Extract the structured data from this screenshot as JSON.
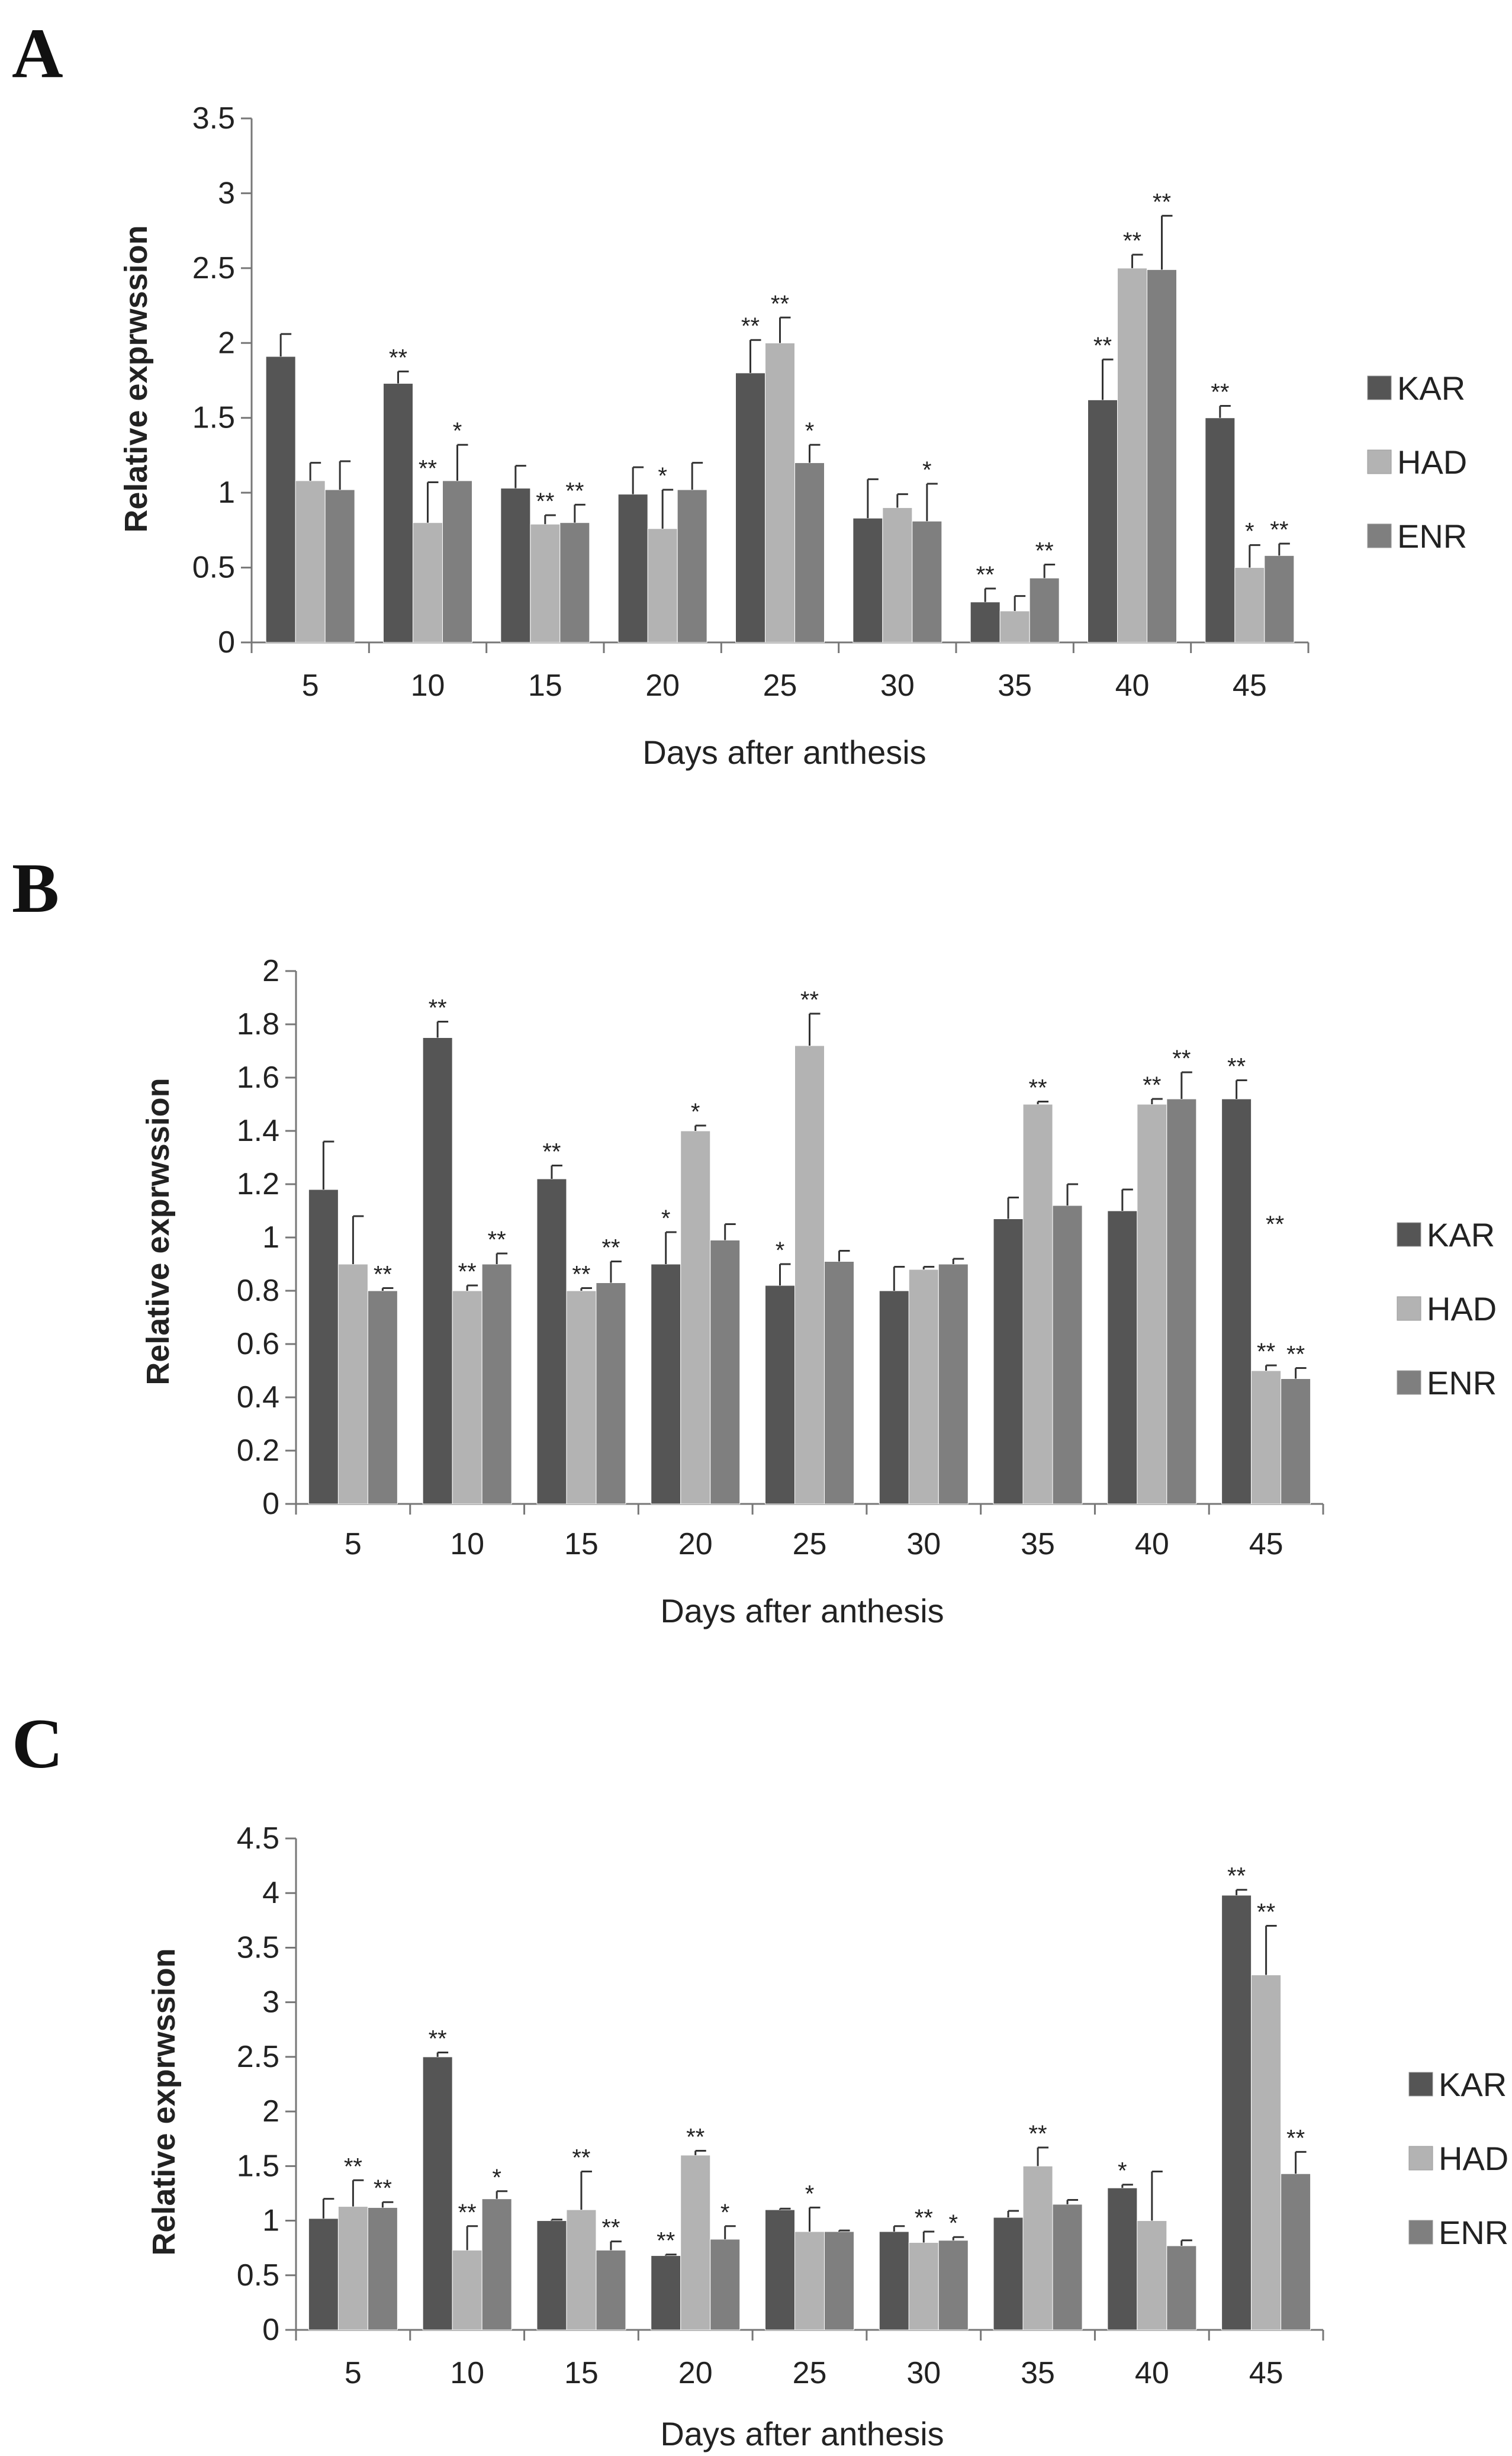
{
  "chart_data": [
    {
      "panel": "A",
      "type": "bar",
      "xlabel": "Days after anthesis",
      "ylabel": "Relative exprwssion",
      "ylim": [
        0,
        3.5
      ],
      "yticks": [
        "0",
        "0.5",
        "1",
        "1.5",
        "2",
        "2.5",
        "3",
        "3.5"
      ],
      "categories": [
        "5",
        "10",
        "15",
        "20",
        "25",
        "30",
        "35",
        "40",
        "45"
      ],
      "series": [
        {
          "name": "KAR",
          "color": "#555555",
          "values": [
            1.91,
            1.73,
            1.03,
            0.99,
            1.8,
            0.83,
            0.27,
            1.62,
            1.5
          ],
          "errors": [
            0.15,
            0.08,
            0.15,
            0.18,
            0.22,
            0.26,
            0.09,
            0.27,
            0.08
          ],
          "sig": [
            "",
            "**",
            "",
            "",
            "**",
            "",
            "**",
            "**",
            "**"
          ]
        },
        {
          "name": "HAD",
          "color": "#b3b3b3",
          "values": [
            1.08,
            0.8,
            0.79,
            0.76,
            2.0,
            0.9,
            0.21,
            2.5,
            0.5
          ],
          "errors": [
            0.12,
            0.27,
            0.06,
            0.26,
            0.17,
            0.09,
            0.1,
            0.09,
            0.15
          ],
          "sig": [
            "",
            "**",
            "**",
            "*",
            "**",
            "",
            "",
            "**",
            "*"
          ]
        },
        {
          "name": "ENR",
          "color": "#7f7f7f",
          "values": [
            1.02,
            1.08,
            0.8,
            1.02,
            1.2,
            0.81,
            0.43,
            2.49,
            0.58
          ],
          "errors": [
            0.19,
            0.24,
            0.12,
            0.18,
            0.12,
            0.25,
            0.09,
            0.36,
            0.08
          ],
          "sig": [
            "",
            "*",
            "**",
            "",
            "*",
            "*",
            "**",
            "**",
            "**"
          ]
        }
      ]
    },
    {
      "panel": "B",
      "type": "bar",
      "xlabel": "Days after anthesis",
      "ylabel": "Relative exprwssion",
      "ylim": [
        0,
        2
      ],
      "yticks": [
        "0",
        "0.2",
        "0.4",
        "0.6",
        "0.8",
        "1",
        "1.2",
        "1.4",
        "1.6",
        "1.8",
        "2"
      ],
      "categories": [
        "5",
        "10",
        "15",
        "20",
        "25",
        "30",
        "35",
        "40",
        "45"
      ],
      "series": [
        {
          "name": "KAR",
          "color": "#555555",
          "values": [
            1.18,
            1.75,
            1.22,
            0.9,
            0.82,
            0.8,
            1.07,
            1.1,
            1.52
          ],
          "errors": [
            0.18,
            0.06,
            0.05,
            0.12,
            0.08,
            0.09,
            0.08,
            0.08,
            0.07
          ],
          "sig": [
            "",
            "**",
            "**",
            "*",
            "*",
            "",
            "",
            "",
            "**"
          ]
        },
        {
          "name": "HAD",
          "color": "#b3b3b3",
          "values": [
            0.9,
            0.8,
            0.8,
            1.4,
            1.72,
            0.88,
            1.5,
            1.5,
            0.5
          ],
          "errors": [
            0.18,
            0.02,
            0.01,
            0.02,
            0.12,
            0.01,
            0.01,
            0.02,
            0.02
          ],
          "sig": [
            "",
            "**",
            "**",
            "*",
            "**",
            "",
            "**",
            "**",
            "**"
          ]
        },
        {
          "name": "ENR",
          "color": "#7f7f7f",
          "values": [
            0.8,
            0.9,
            0.83,
            0.99,
            0.91,
            0.9,
            1.12,
            1.52,
            0.47
          ],
          "errors": [
            0.01,
            0.04,
            0.08,
            0.06,
            0.04,
            0.02,
            0.08,
            0.1,
            0.04
          ],
          "sig": [
            "**",
            "**",
            "**",
            "",
            "",
            "",
            "",
            "**",
            "**"
          ]
        }
      ],
      "annotations": [
        {
          "text": "**",
          "category": "45",
          "at_value": 1.02
        }
      ]
    },
    {
      "panel": "C",
      "type": "bar",
      "xlabel": "Days after anthesis",
      "ylabel": "Relative exprwssion",
      "ylim": [
        0,
        4.5
      ],
      "yticks": [
        "0",
        "0.5",
        "1",
        "1.5",
        "2",
        "2.5",
        "3",
        "3.5",
        "4",
        "4.5"
      ],
      "categories": [
        "5",
        "10",
        "15",
        "20",
        "25",
        "30",
        "35",
        "40",
        "45"
      ],
      "series": [
        {
          "name": "KAR",
          "color": "#555555",
          "values": [
            1.02,
            2.5,
            1.0,
            0.68,
            1.1,
            0.9,
            1.03,
            1.3,
            3.98
          ],
          "errors": [
            0.18,
            0.04,
            0.01,
            0.01,
            0.01,
            0.05,
            0.06,
            0.03,
            0.05
          ],
          "sig": [
            "",
            "**",
            "",
            "**",
            "",
            "",
            "",
            "*",
            "**"
          ]
        },
        {
          "name": "HAD",
          "color": "#b3b3b3",
          "values": [
            1.13,
            0.73,
            1.1,
            1.6,
            0.9,
            0.8,
            1.5,
            1.0,
            3.25
          ],
          "errors": [
            0.24,
            0.22,
            0.35,
            0.04,
            0.22,
            0.1,
            0.17,
            0.45,
            0.45
          ],
          "sig": [
            "**",
            "**",
            "**",
            "**",
            "*",
            "**",
            "**",
            "",
            "**"
          ]
        },
        {
          "name": "ENR",
          "color": "#7f7f7f",
          "values": [
            1.12,
            1.2,
            0.73,
            0.83,
            0.9,
            0.82,
            1.15,
            0.77,
            1.43
          ],
          "errors": [
            0.05,
            0.07,
            0.08,
            0.12,
            0.01,
            0.03,
            0.04,
            0.05,
            0.2
          ],
          "sig": [
            "**",
            "*",
            "**",
            "*",
            "",
            "*",
            "",
            "",
            "**"
          ]
        }
      ]
    }
  ]
}
